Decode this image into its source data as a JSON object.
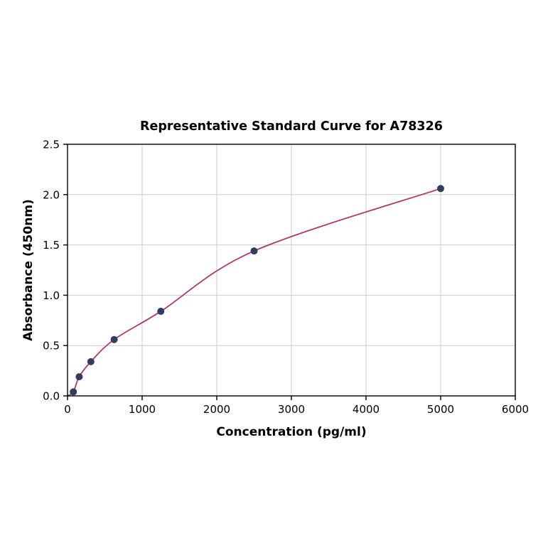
{
  "title": "Representative Standard Curve for A78326",
  "chart_data": {
    "type": "scatter",
    "title": "Representative Standard Curve for A78326",
    "xlabel": "Concentration (pg/ml)",
    "ylabel": "Absorbance (450nm)",
    "xlim": [
      0,
      6000
    ],
    "ylim": [
      0,
      2.5
    ],
    "x_ticks": [
      0,
      1000,
      2000,
      3000,
      4000,
      5000,
      6000
    ],
    "x_tick_labels": [
      "0",
      "1000",
      "2000",
      "3000",
      "4000",
      "5000",
      "6000"
    ],
    "y_ticks": [
      0,
      0.5,
      1.0,
      1.5,
      2.0,
      2.5
    ],
    "y_tick_labels": [
      "0.0",
      "0.5",
      "1.0",
      "1.5",
      "2.0",
      "2.5"
    ],
    "grid": true,
    "legend": "none",
    "points": {
      "x": [
        78.1,
        156.3,
        312.5,
        625,
        1250,
        2500,
        5000
      ],
      "y": [
        0.04,
        0.19,
        0.34,
        0.56,
        0.84,
        1.44,
        2.06
      ]
    },
    "curve_start": {
      "x": 0,
      "y": 0.0
    },
    "colors": {
      "point": "#2d3e5f",
      "curve": "#b23a5e",
      "grid": "#cccccc",
      "axis": "#000000"
    }
  }
}
